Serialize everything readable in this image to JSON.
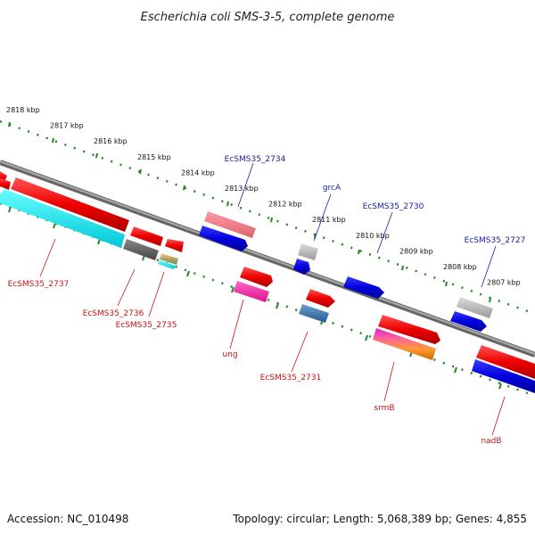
{
  "title": "Escherichia coli SMS-3-5, complete genome",
  "footer": {
    "accession": "Accession: NC_010498",
    "topology": "Topology: circular; Length: 5,068,389 bp; Genes: 4,855"
  },
  "ticks": [
    "2818 kbp",
    "2817 kbp",
    "2816 kbp",
    "2815 kbp",
    "2814 kbp",
    "2813 kbp",
    "2812 kbp",
    "2811 kbp",
    "2810 kbp",
    "2809 kbp",
    "2808 kbp",
    "2807 kbp"
  ],
  "colors": {
    "tick_line": "#228822",
    "backbone": "#888888",
    "label_top": "#1a1aa6",
    "label_bottom": "#cc1111"
  },
  "genes": [
    {
      "id": "EcSMS35_2737",
      "color": "#00e5e5",
      "strand": "minus"
    },
    {
      "id": "EcSMS35_2736",
      "color": "#555555",
      "strand": "minus"
    },
    {
      "id": "EcSMS35_2735",
      "color": "#c8b070",
      "strand": "minus"
    },
    {
      "id": "EcSMS35_2734",
      "color": "#ee7777",
      "strand": "plus"
    },
    {
      "id": "ung",
      "color": "#ee1188",
      "strand": "minus"
    },
    {
      "id": "grcA",
      "color": "#aaaaaa",
      "strand": "plus"
    },
    {
      "id": "EcSMS35_2731",
      "color": "#3a6fa5",
      "strand": "minus"
    },
    {
      "id": "EcSMS35_2730",
      "color": "#0000dd",
      "strand": "plus"
    },
    {
      "id": "srmB",
      "color": "#ee8833",
      "strand": "minus"
    },
    {
      "id": "EcSMS35_2727",
      "color": "#aaaaaa",
      "strand": "plus"
    },
    {
      "id": "nadB",
      "color": "#0000dd",
      "strand": "minus"
    }
  ],
  "labels": {
    "top": [
      "EcSMS35_2734",
      "grcA",
      "EcSMS35_2730",
      "EcSMS35_2727"
    ],
    "bottom": [
      "EcSMS35_2737",
      "EcSMS35_2736",
      "EcSMS35_2735",
      "ung",
      "EcSMS35_2731",
      "srmB",
      "nadB"
    ]
  }
}
